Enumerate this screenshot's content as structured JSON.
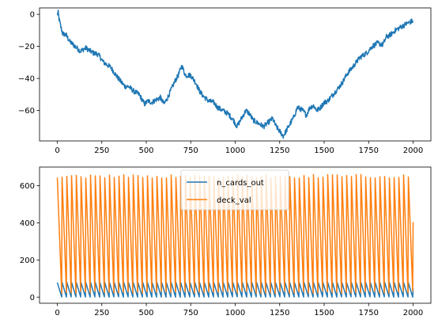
{
  "chart_data": [
    {
      "type": "line",
      "title": "",
      "xlabel": "",
      "ylabel": "",
      "xlim": [
        -100,
        2100
      ],
      "ylim": [
        -79,
        4
      ],
      "x_ticks": [
        0,
        250,
        500,
        750,
        1000,
        1250,
        1500,
        1750,
        2000
      ],
      "y_ticks": [
        0,
        -20,
        -40,
        -60
      ],
      "grid": false,
      "legend": null,
      "series": [
        {
          "color": "#1f77b4",
          "x": [
            0,
            5,
            10,
            20,
            30,
            50,
            70,
            100,
            130,
            160,
            200,
            230,
            260,
            300,
            330,
            350,
            380,
            400,
            430,
            460,
            490,
            510,
            530,
            560,
            580,
            600,
            620,
            640,
            660,
            680,
            700,
            720,
            750,
            780,
            800,
            820,
            850,
            880,
            900,
            930,
            960,
            990,
            1010,
            1030,
            1060,
            1080,
            1100,
            1130,
            1160,
            1190,
            1210,
            1230,
            1250,
            1270,
            1290,
            1310,
            1330,
            1350,
            1380,
            1400,
            1420,
            1440,
            1460,
            1480,
            1500,
            1520,
            1550,
            1580,
            1600,
            1630,
            1660,
            1700,
            1740,
            1770,
            1800,
            1830,
            1850,
            1870,
            1900,
            1930,
            1960,
            1980,
            2000
          ],
          "values": [
            0,
            1,
            -3,
            -8,
            -12,
            -13,
            -17,
            -20,
            -23,
            -21,
            -24,
            -25,
            -30,
            -33,
            -38,
            -41,
            -45,
            -45,
            -48,
            -50,
            -56,
            -54,
            -55,
            -53,
            -52,
            -56,
            -52,
            -47,
            -42,
            -38,
            -32,
            -38,
            -38,
            -43,
            -48,
            -51,
            -54,
            -55,
            -58,
            -60,
            -62,
            -66,
            -70,
            -66,
            -60,
            -62,
            -66,
            -68,
            -70,
            -67,
            -65,
            -70,
            -73,
            -76,
            -72,
            -68,
            -64,
            -58,
            -60,
            -63,
            -58,
            -57,
            -60,
            -58,
            -55,
            -54,
            -50,
            -46,
            -43,
            -37,
            -33,
            -27,
            -24,
            -20,
            -18,
            -19,
            -14,
            -13,
            -10,
            -8,
            -6,
            -5,
            -4
          ]
        }
      ]
    },
    {
      "type": "line",
      "title": "",
      "xlabel": "",
      "ylabel": "",
      "xlim": [
        -100,
        2100
      ],
      "ylim": [
        -33,
        700
      ],
      "x_ticks": [
        0,
        250,
        500,
        750,
        1000,
        1250,
        1500,
        1750,
        2000
      ],
      "y_ticks": [
        0,
        200,
        400,
        600
      ],
      "grid": false,
      "legend": "top-center",
      "series": [
        {
          "name": "n_cards_out",
          "color": "#1f77b4",
          "pattern": "sawtooth",
          "cycles": 75,
          "x_start": 0,
          "x_end": 2000,
          "min": 0,
          "max": 80
        },
        {
          "name": "deck_val",
          "color": "#ff7f0e",
          "pattern": "sawtooth",
          "cycles": 75,
          "x_start": 0,
          "x_end": 2000,
          "min": 20,
          "max": 660
        }
      ]
    }
  ]
}
